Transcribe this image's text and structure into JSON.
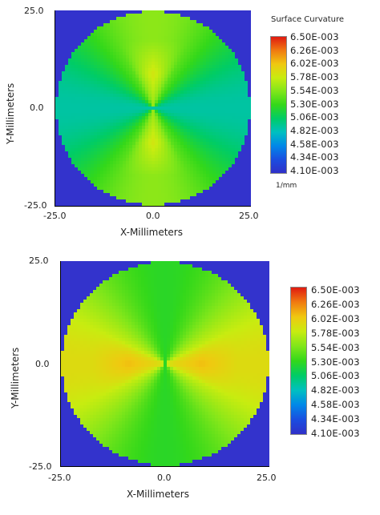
{
  "chart_data": [
    {
      "type": "heatmap",
      "title": "",
      "xlabel": "X-Millimeters",
      "ylabel": "Y-Millimeters",
      "xlim": [
        -25.0,
        25.0
      ],
      "ylim": [
        -25.0,
        25.0
      ],
      "x_ticks": [
        "-25.0",
        "0.0",
        "25.0"
      ],
      "y_ticks": [
        "25.0",
        "0.0",
        "-25.0"
      ],
      "legend": {
        "title": "Surface Curvature",
        "unit": "1/mm",
        "placement": "right",
        "levels": [
          "6.50E-003",
          "6.26E-003",
          "6.02E-003",
          "5.78E-003",
          "5.54E-003",
          "5.30E-003",
          "5.06E-003",
          "4.82E-003",
          "4.58E-003",
          "4.34E-003",
          "4.10E-003"
        ]
      },
      "color_range": [
        0.0041,
        0.0065
      ],
      "field": {
        "mean": 0.00524,
        "amplitude": 0.00034,
        "peak": 0.0059,
        "lobes_along": "y"
      },
      "background_color": "#3333cc",
      "aperture": "circle"
    },
    {
      "type": "heatmap",
      "title": "",
      "xlabel": "X-Millimeters",
      "ylabel": "Y-Millimeters",
      "xlim": [
        -25.0,
        25.0
      ],
      "ylim": [
        -25.0,
        25.0
      ],
      "x_ticks": [
        "-25.0",
        "0.0",
        "25.0"
      ],
      "y_ticks": [
        "25.0",
        "0.0",
        "-25.0"
      ],
      "legend": {
        "title": "",
        "unit": "",
        "placement": "right",
        "levels": [
          "6.50E-003",
          "6.26E-003",
          "6.02E-003",
          "5.78E-003",
          "5.54E-003",
          "5.30E-003",
          "5.06E-003",
          "4.82E-003",
          "4.58E-003",
          "4.34E-003",
          "4.10E-003"
        ]
      },
      "color_range": [
        0.0041,
        0.0065
      ],
      "field": {
        "mean": 0.00558,
        "amplitude": 0.00032,
        "peak": 0.0061,
        "lobes_along": "x"
      },
      "background_color": "#3333cc",
      "aperture": "circle"
    }
  ],
  "colormap": [
    "#3030c8",
    "#1a4ee0",
    "#0088e8",
    "#00c0c0",
    "#00cc66",
    "#33d81a",
    "#80e61a",
    "#c8ec10",
    "#f0c810",
    "#f07a10",
    "#e01a10"
  ]
}
